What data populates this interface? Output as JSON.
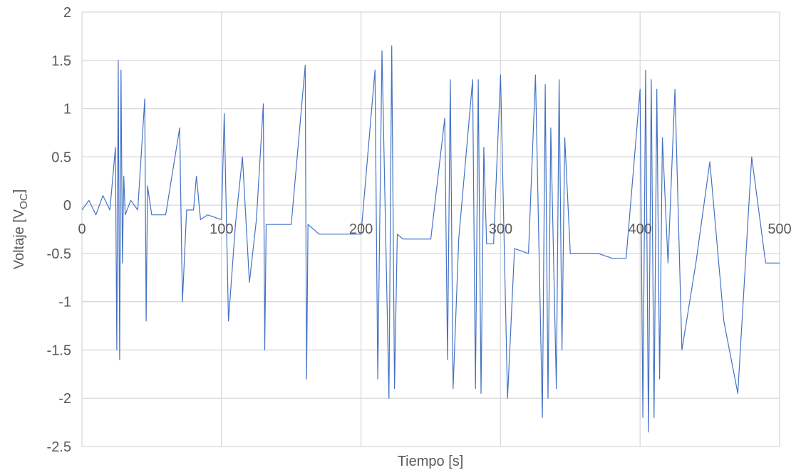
{
  "chart_data": {
    "type": "line",
    "xlabel": "Tiempo [s]",
    "ylabel_main": "Voltaje [V",
    "ylabel_sub": "OC",
    "ylabel_close": "]",
    "xlim": [
      0,
      500
    ],
    "ylim": [
      -2.5,
      2
    ],
    "x_ticks": [
      0,
      100,
      200,
      300,
      400,
      500
    ],
    "y_ticks": [
      2,
      1.5,
      1,
      0.5,
      0,
      -0.5,
      -1,
      -1.5,
      -2,
      -2.5
    ],
    "x_tick_labels": [
      "0",
      "100",
      "200",
      "300",
      "400",
      "500"
    ],
    "y_tick_labels": [
      "2",
      "1.5",
      "1",
      "0.5",
      "0",
      "-0.5",
      "-1",
      "-1.5",
      "-2",
      "-2.5"
    ],
    "grid": true,
    "line_color": "#4472C4",
    "grid_color": "#D9D9D9",
    "series": [
      {
        "x": [
          0,
          5,
          10,
          15,
          20,
          24,
          25,
          26,
          27,
          28,
          29,
          30,
          31,
          35,
          40,
          45,
          46,
          47,
          50,
          60,
          70,
          72,
          75,
          80,
          82,
          85,
          90,
          100,
          102,
          105,
          110,
          115,
          120,
          125,
          130,
          131,
          132,
          140,
          150,
          160,
          161,
          162,
          170,
          180,
          190,
          200,
          210,
          212,
          215,
          220,
          222,
          224,
          226,
          230,
          240,
          250,
          260,
          262,
          264,
          266,
          270,
          280,
          282,
          284,
          286,
          288,
          290,
          295,
          300,
          305,
          310,
          320,
          325,
          330,
          332,
          334,
          336,
          340,
          342,
          344,
          346,
          350,
          360,
          370,
          380,
          390,
          400,
          402,
          404,
          406,
          408,
          410,
          412,
          414,
          416,
          420,
          425,
          430,
          440,
          450,
          460,
          470,
          480,
          490,
          500
        ],
        "y": [
          -0.05,
          0.05,
          -0.1,
          0.1,
          -0.05,
          0.6,
          -1.5,
          1.5,
          -1.6,
          1.4,
          -0.6,
          0.3,
          -0.1,
          0.05,
          -0.05,
          1.1,
          -1.2,
          0.2,
          -0.1,
          -0.1,
          0.8,
          -1.0,
          -0.05,
          -0.05,
          0.3,
          -0.15,
          -0.1,
          -0.15,
          0.95,
          -1.2,
          -0.2,
          0.5,
          -0.8,
          -0.15,
          1.05,
          -1.5,
          -0.2,
          -0.2,
          -0.2,
          1.45,
          -1.8,
          -0.2,
          -0.3,
          -0.3,
          -0.3,
          -0.3,
          1.4,
          -1.8,
          1.6,
          -2.0,
          1.65,
          -1.9,
          -0.3,
          -0.35,
          -0.35,
          -0.35,
          0.9,
          -1.6,
          1.3,
          -1.9,
          -0.35,
          1.3,
          -1.9,
          1.3,
          -1.95,
          0.6,
          -0.4,
          -0.4,
          1.35,
          -2.0,
          -0.45,
          -0.5,
          1.35,
          -2.2,
          1.25,
          -2.0,
          0.8,
          -1.9,
          1.3,
          -1.5,
          0.7,
          -0.5,
          -0.5,
          -0.5,
          -0.55,
          -0.55,
          1.2,
          -2.2,
          1.4,
          -2.35,
          1.3,
          -2.2,
          1.2,
          -1.8,
          0.7,
          -0.6,
          1.2,
          -1.5,
          -0.6,
          0.45,
          -1.2,
          -1.95,
          0.5,
          -0.6,
          -0.6
        ]
      }
    ]
  }
}
